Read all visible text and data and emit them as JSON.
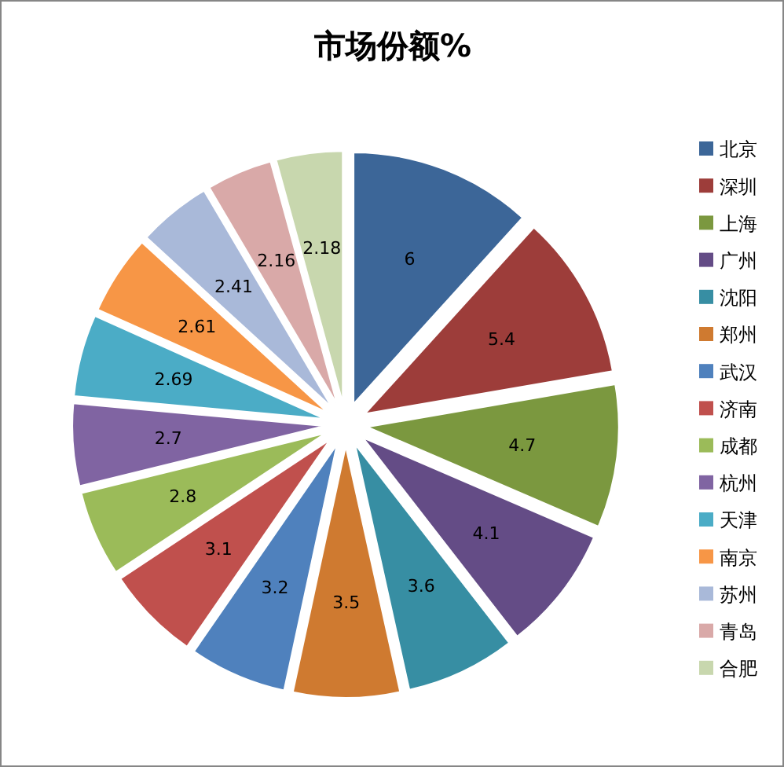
{
  "chart_data": {
    "type": "pie",
    "title": "市场份额%",
    "categories": [
      "北京",
      "深圳",
      "上海",
      "广州",
      "沈阳",
      "郑州",
      "武汉",
      "济南",
      "成都",
      "杭州",
      "天津",
      "南京",
      "苏州",
      "青岛",
      "合肥"
    ],
    "values": [
      6,
      5.4,
      4.7,
      4.1,
      3.6,
      3.5,
      3.2,
      3.1,
      2.8,
      2.7,
      2.69,
      2.61,
      2.41,
      2.16,
      2.18
    ],
    "colors": [
      "#3c6698",
      "#9d3d3a",
      "#7b983f",
      "#644c86",
      "#378ea3",
      "#cf7a30",
      "#4f81bd",
      "#c0504d",
      "#9bbb59",
      "#8064a2",
      "#4bacc6",
      "#f79646",
      "#a9b9d9",
      "#d9a9a8",
      "#c8d7ae"
    ],
    "data_labels": true,
    "legend": "right"
  }
}
